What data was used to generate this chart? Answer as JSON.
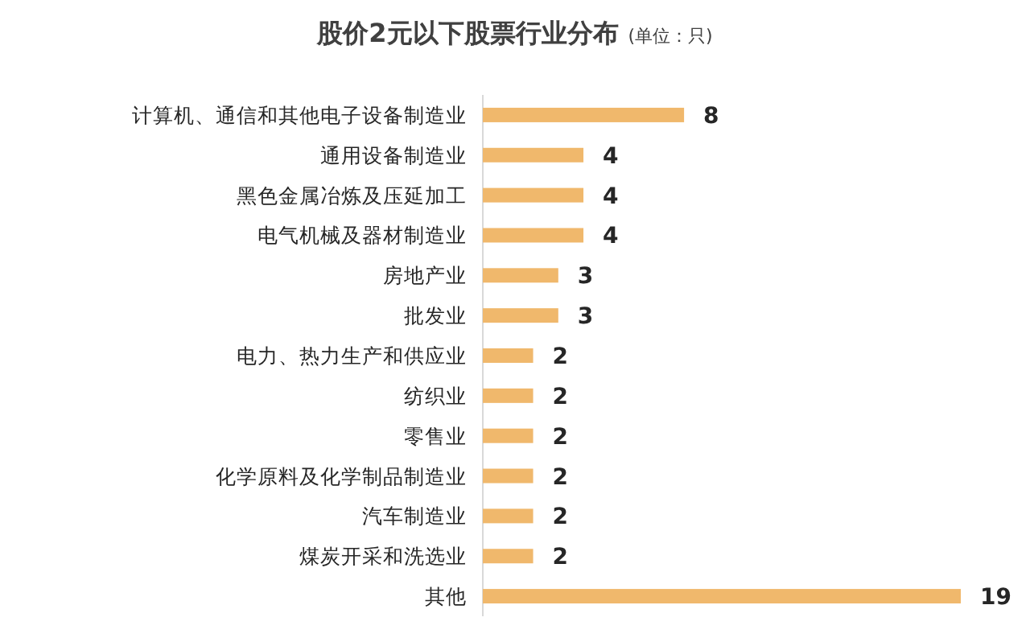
{
  "chart_data": {
    "type": "bar",
    "orientation": "horizontal",
    "title": "股价2元以下股票行业分布",
    "subtitle": "(单位：只)",
    "categories": [
      "计算机、通信和其他电子设备制造业",
      "通用设备制造业",
      "黑色金属冶炼及压延加工",
      "电气机械及器材制造业",
      "房地产业",
      "批发业",
      "电力、热力生产和供应业",
      "纺织业",
      "零售业",
      "化学原料及化学制品制造业",
      "汽车制造业",
      "煤炭开采和洗选业",
      "其他"
    ],
    "values": [
      8,
      4,
      4,
      4,
      3,
      3,
      2,
      2,
      2,
      2,
      2,
      2,
      19
    ],
    "color": "#f0b86c",
    "data_labels": true
  }
}
